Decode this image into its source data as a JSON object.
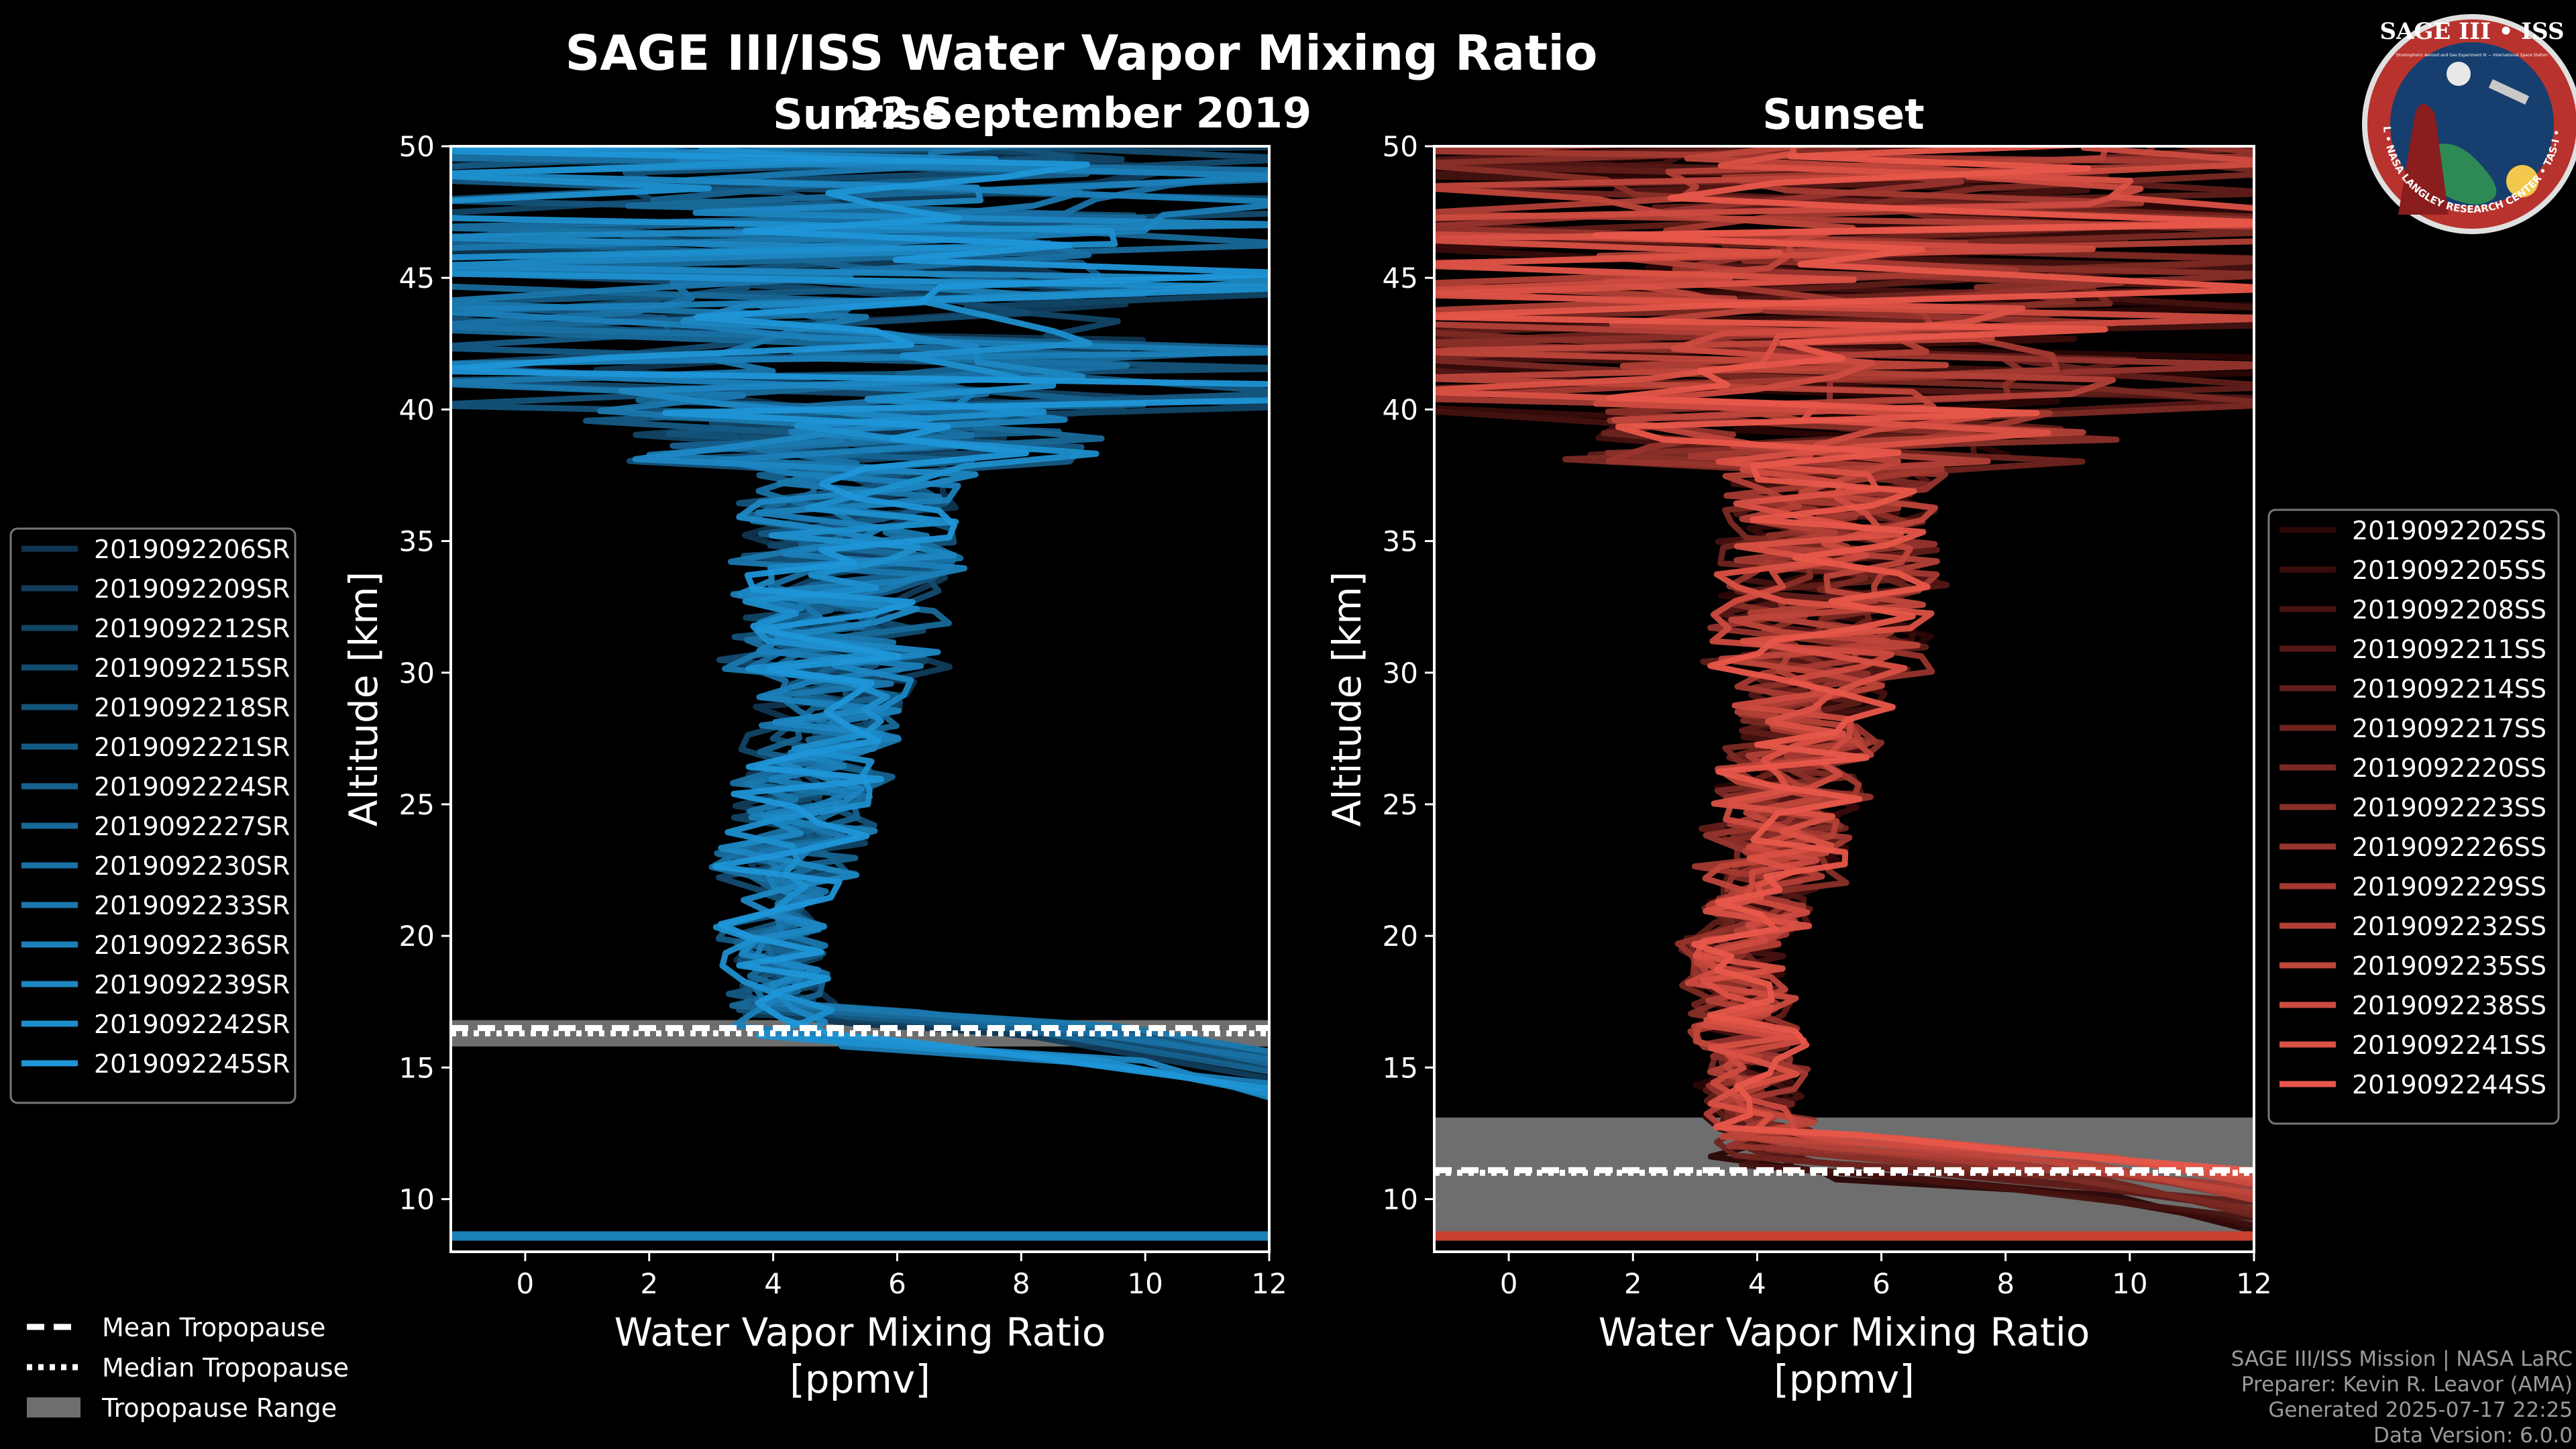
{
  "header": {
    "title": "SAGE III/ISS Water Vapor Mixing Ratio",
    "date": "22 September 2019",
    "left_panel_title": "Sunrise",
    "right_panel_title": "Sunset"
  },
  "logo": {
    "name": "SAGE III • ISS",
    "subtitle": "Stratospheric Aerosol and Gas Experiment III — International Space Station",
    "ring_text": "BALL • NASA LANGLEY RESEARCH CENTER • TAS-I • ESA"
  },
  "credits": {
    "line1": "SAGE III/ISS Mission | NASA LaRC",
    "line2": "Preparer: Kevin R. Leavor (AMA)",
    "line3": "Generated 2025-07-17 22:25",
    "line4": "Data Version: 6.0.0"
  },
  "tropopause_legend": {
    "mean": "Mean Tropopause",
    "median": "Median Tropopause",
    "range": "Tropopause Range"
  },
  "chart_data": [
    {
      "type": "line",
      "panel": "Sunrise",
      "xlabel": "Water Vapor Mixing Ratio\n[ppmv]",
      "ylabel": "Altitude [km]",
      "xlim": [
        -1.2,
        12
      ],
      "ylim": [
        8,
        50
      ],
      "xticks": [
        0,
        2,
        4,
        6,
        8,
        10,
        12
      ],
      "yticks": [
        10,
        15,
        20,
        25,
        30,
        35,
        40,
        45,
        50
      ],
      "tropopause": {
        "mean": 16.5,
        "median": 16.3,
        "range": [
          15.8,
          16.8
        ]
      },
      "series_color_range": [
        "#0f3550",
        "#1f96d8"
      ],
      "series": [
        {
          "name": "2019092206SR"
        },
        {
          "name": "2019092209SR"
        },
        {
          "name": "2019092212SR"
        },
        {
          "name": "2019092215SR"
        },
        {
          "name": "2019092218SR"
        },
        {
          "name": "2019092221SR"
        },
        {
          "name": "2019092224SR"
        },
        {
          "name": "2019092227SR"
        },
        {
          "name": "2019092230SR"
        },
        {
          "name": "2019092233SR"
        },
        {
          "name": "2019092236SR"
        },
        {
          "name": "2019092239SR"
        },
        {
          "name": "2019092242SR"
        },
        {
          "name": "2019092245SR"
        }
      ]
    },
    {
      "type": "line",
      "panel": "Sunset",
      "xlabel": "Water Vapor Mixing Ratio\n[ppmv]",
      "ylabel": "Altitude [km]",
      "xlim": [
        -1.2,
        12
      ],
      "ylim": [
        8,
        50
      ],
      "xticks": [
        0,
        2,
        4,
        6,
        8,
        10,
        12
      ],
      "yticks": [
        10,
        15,
        20,
        25,
        30,
        35,
        40,
        45,
        50
      ],
      "tropopause": {
        "mean": 11.1,
        "median": 11.0,
        "range": [
          8.5,
          13.1
        ]
      },
      "series_color_range": [
        "#2a0606",
        "#e8574a"
      ],
      "series": [
        {
          "name": "2019092202SS"
        },
        {
          "name": "2019092205SS"
        },
        {
          "name": "2019092208SS"
        },
        {
          "name": "2019092211SS"
        },
        {
          "name": "2019092214SS"
        },
        {
          "name": "2019092217SS"
        },
        {
          "name": "2019092220SS"
        },
        {
          "name": "2019092223SS"
        },
        {
          "name": "2019092226SS"
        },
        {
          "name": "2019092229SS"
        },
        {
          "name": "2019092232SS"
        },
        {
          "name": "2019092235SS"
        },
        {
          "name": "2019092238SS"
        },
        {
          "name": "2019092241SS"
        },
        {
          "name": "2019092244SS"
        }
      ]
    }
  ]
}
